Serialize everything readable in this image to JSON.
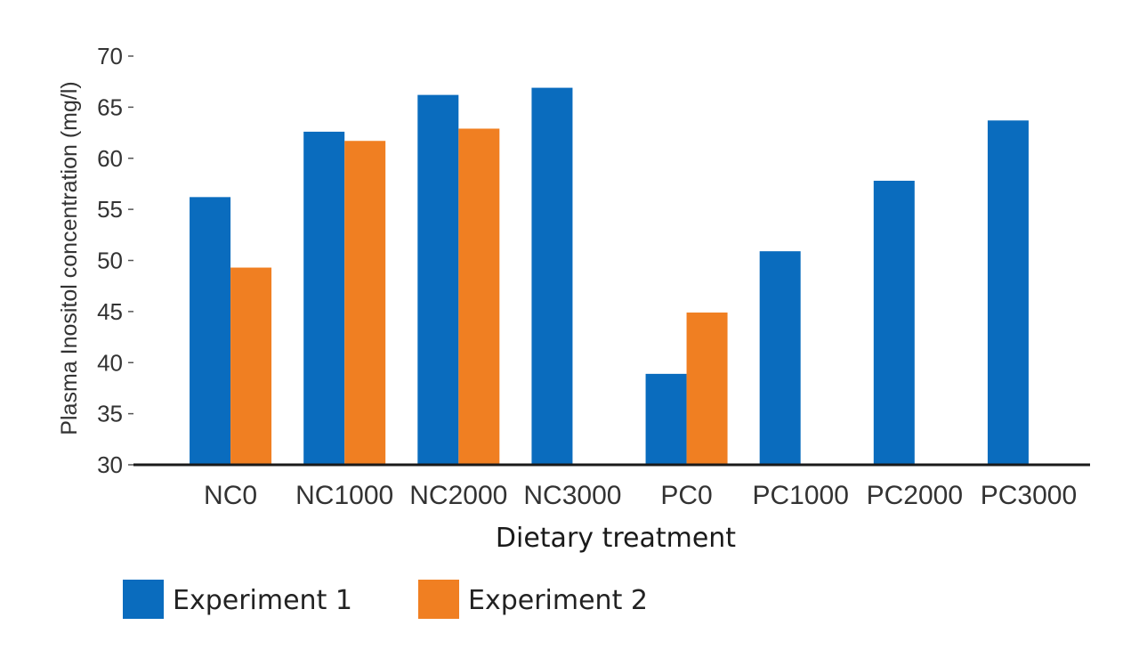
{
  "chart_data": {
    "type": "bar",
    "title": "",
    "xlabel": "Dietary treatment",
    "ylabel": "Plasma Inositol concentration (mg/l)",
    "ylim": [
      30,
      70
    ],
    "yticks": [
      30,
      35,
      40,
      45,
      50,
      55,
      60,
      65,
      70
    ],
    "categories": [
      "NC0",
      "NC1000",
      "NC2000",
      "NC3000",
      "PC0",
      "PC1000",
      "PC2000",
      "PC3000"
    ],
    "series": [
      {
        "name": "Experiment 1",
        "color": "#0a6cbe",
        "values": [
          56.2,
          62.6,
          66.2,
          66.9,
          38.9,
          50.9,
          57.8,
          63.7
        ]
      },
      {
        "name": "Experiment 2",
        "color": "#f07f22",
        "values": [
          49.3,
          61.7,
          62.9,
          null,
          44.9,
          null,
          null,
          null
        ]
      }
    ],
    "grid": false,
    "legend": "bottom-left"
  }
}
